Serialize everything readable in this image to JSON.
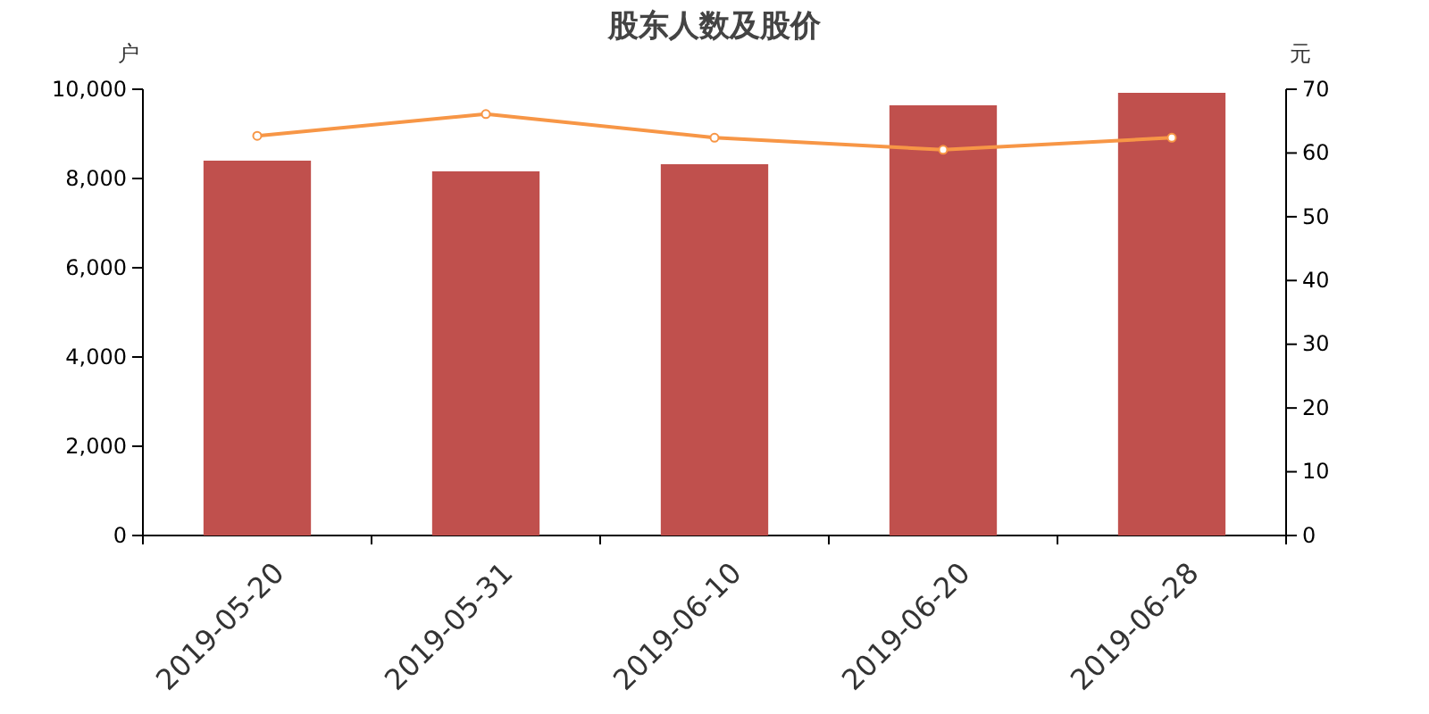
{
  "chart_data": {
    "type": "bar",
    "title": "股东人数及股价",
    "ylabel": "户",
    "y2label": "元",
    "categories": [
      "2019-05-20",
      "2019-05-31",
      "2019-06-10",
      "2019-06-20",
      "2019-06-28"
    ],
    "series": [
      {
        "color": "#c0504d",
        "values": [
          8400,
          8160,
          8320,
          9640,
          9920
        ]
      },
      {
        "type": "line",
        "axis": "y2",
        "color": "#f79646",
        "marker": "circle",
        "values": [
          62.7,
          66.1,
          62.4,
          60.5,
          62.4
        ]
      }
    ],
    "ylim": [
      0,
      10000
    ],
    "yticks": [
      {
        "value": 0,
        "label": "0"
      },
      {
        "value": 2000,
        "label": "2,000"
      },
      {
        "value": 4000,
        "label": "4,000"
      },
      {
        "value": 6000,
        "label": "6,000"
      },
      {
        "value": 8000,
        "label": "8,000"
      },
      {
        "value": 10000,
        "label": "10,000"
      }
    ],
    "y2lim": [
      0,
      70
    ],
    "y2ticks": [
      0,
      10,
      20,
      30,
      40,
      50,
      60,
      70
    ],
    "grid": false
  }
}
